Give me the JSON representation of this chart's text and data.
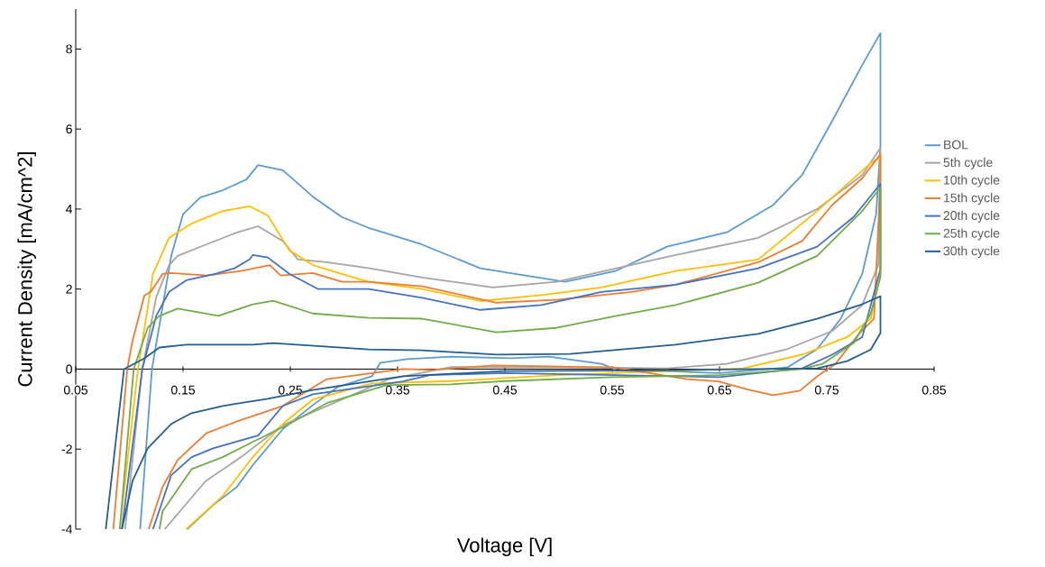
{
  "chart_data": {
    "type": "line",
    "xlabel": "Voltage [V]",
    "ylabel": "Current Density [mA/cm^2]",
    "xlim": [
      0.05,
      0.85
    ],
    "ylim": [
      -4,
      9
    ],
    "xticks": [
      0.05,
      0.15,
      0.25,
      0.35,
      0.45,
      0.55,
      0.65,
      0.75,
      0.85
    ],
    "yticks": [
      -4,
      -2,
      0,
      2,
      4,
      6,
      8
    ],
    "grid": false,
    "legend": "right",
    "marker": "none",
    "line_style": "solid",
    "series": [
      {
        "name": "BOL",
        "color": "#5b9bd5",
        "x": [
          0.11,
          0.121,
          0.139,
          0.15,
          0.166,
          0.187,
          0.209,
          0.22,
          0.243,
          0.271,
          0.298,
          0.323,
          0.372,
          0.427,
          0.469,
          0.506,
          0.553,
          0.601,
          0.657,
          0.7,
          0.727,
          0.755,
          0.783,
          0.8,
          0.8,
          0.796,
          0.783,
          0.763,
          0.741,
          0.713,
          0.65,
          0.6,
          0.554,
          0.54,
          0.491,
          0.456,
          0.4,
          0.359,
          0.334,
          0.326,
          0.294,
          0.271,
          0.243,
          0.215,
          0.2,
          0.178,
          0.154
        ],
        "values": [
          -4,
          0,
          2.83,
          3.87,
          4.29,
          4.47,
          4.74,
          5.1,
          4.97,
          4.31,
          3.8,
          3.53,
          3.12,
          2.52,
          2.34,
          2.18,
          2.45,
          3.06,
          3.42,
          4.1,
          4.85,
          6.2,
          7.6,
          8.4,
          5.6,
          3.87,
          2.38,
          1.26,
          0.5,
          0.04,
          -0.1,
          -0.05,
          -0.02,
          0.13,
          0.31,
          0.27,
          0.31,
          0.25,
          0.16,
          -0.18,
          -0.45,
          -0.9,
          -1.5,
          -2.4,
          -2.95,
          -3.4,
          -4
        ]
      },
      {
        "name": "5th cycle",
        "color": "#a5a5a5",
        "x": [
          0.096,
          0.112,
          0.125,
          0.137,
          0.145,
          0.172,
          0.201,
          0.22,
          0.243,
          0.257,
          0.284,
          0.324,
          0.373,
          0.439,
          0.498,
          0.554,
          0.609,
          0.686,
          0.741,
          0.783,
          0.8,
          0.798,
          0.783,
          0.755,
          0.713,
          0.657,
          0.601,
          0.5,
          0.4,
          0.342,
          0.243,
          0.204,
          0.171,
          0.133
        ],
        "values": [
          -4,
          0,
          1.8,
          2.6,
          2.83,
          3.12,
          3.42,
          3.57,
          3.2,
          2.74,
          2.67,
          2.52,
          2.29,
          2.04,
          2.18,
          2.52,
          2.85,
          3.28,
          4.0,
          4.85,
          5.53,
          2.6,
          1.6,
          0.95,
          0.5,
          0.13,
          0.02,
          0.05,
          0.05,
          -0.25,
          -1.4,
          -2.2,
          -2.8,
          -4
        ]
      },
      {
        "name": "10th cycle",
        "color": "#ffc000",
        "x": [
          0.091,
          0.108,
          0.122,
          0.137,
          0.158,
          0.187,
          0.212,
          0.229,
          0.249,
          0.271,
          0.298,
          0.323,
          0.373,
          0.427,
          0.484,
          0.54,
          0.609,
          0.686,
          0.741,
          0.791,
          0.8,
          0.8,
          0.791,
          0.769,
          0.727,
          0.672,
          0.6,
          0.5,
          0.4,
          0.326,
          0.271,
          0.243,
          0.215,
          0.187,
          0.153
        ],
        "values": [
          -4,
          0,
          2.38,
          3.28,
          3.64,
          3.95,
          4.07,
          3.84,
          2.97,
          2.6,
          2.38,
          2.18,
          2.0,
          1.7,
          1.85,
          2.04,
          2.45,
          2.74,
          3.95,
          5.15,
          5.3,
          2.38,
          1.26,
          0.8,
          0.36,
          0.02,
          -0.05,
          -0.15,
          -0.3,
          -0.36,
          -0.76,
          -1.37,
          -2.2,
          -3.17,
          -4
        ]
      },
      {
        "name": "15th cycle",
        "color": "#ed7d31",
        "x": [
          0.085,
          0.098,
          0.103,
          0.114,
          0.12,
          0.131,
          0.139,
          0.172,
          0.204,
          0.231,
          0.241,
          0.271,
          0.298,
          0.323,
          0.373,
          0.442,
          0.498,
          0.568,
          0.609,
          0.686,
          0.727,
          0.755,
          0.783,
          0.8,
          0.8,
          0.794,
          0.78,
          0.758,
          0.741,
          0.725,
          0.7,
          0.678,
          0.649,
          0.62,
          0.578,
          0.551,
          0.439,
          0.383,
          0.355,
          0.284,
          0.243,
          0.201,
          0.172,
          0.145,
          0.131,
          0.118
        ],
        "values": [
          -4,
          0,
          0.72,
          1.84,
          1.93,
          2.38,
          2.4,
          2.34,
          2.45,
          2.6,
          2.34,
          2.4,
          2.18,
          2.18,
          2.07,
          1.66,
          1.73,
          1.93,
          2.11,
          2.67,
          3.2,
          4.1,
          4.77,
          5.37,
          4.75,
          1.26,
          0.88,
          0.13,
          -0.18,
          -0.54,
          -0.65,
          -0.52,
          -0.31,
          -0.25,
          -0.07,
          0.04,
          0.09,
          -0.02,
          0.0,
          -0.25,
          -0.92,
          -1.3,
          -1.6,
          -2.27,
          -2.94,
          -4
        ]
      },
      {
        "name": "20th cycle",
        "color": "#4472c4",
        "x": [
          0.093,
          0.112,
          0.125,
          0.137,
          0.153,
          0.18,
          0.198,
          0.212,
          0.215,
          0.229,
          0.249,
          0.276,
          0.323,
          0.373,
          0.427,
          0.484,
          0.54,
          0.609,
          0.686,
          0.741,
          0.775,
          0.8,
          0.8,
          0.783,
          0.755,
          0.727,
          0.65,
          0.55,
          0.45,
          0.38,
          0.355,
          0.271,
          0.243,
          0.22,
          0.178,
          0.158,
          0.139,
          0.122
        ],
        "values": [
          -4,
          0,
          1.33,
          1.93,
          2.22,
          2.38,
          2.52,
          2.74,
          2.85,
          2.79,
          2.38,
          2.0,
          2.0,
          1.78,
          1.48,
          1.6,
          1.93,
          2.11,
          2.52,
          3.06,
          3.8,
          4.63,
          2.5,
          0.8,
          0.36,
          0.02,
          -0.2,
          -0.15,
          -0.1,
          -0.15,
          -0.31,
          -0.63,
          -0.92,
          -1.66,
          -1.98,
          -2.2,
          -2.65,
          -4
        ]
      },
      {
        "name": "25th cycle",
        "color": "#70ad47",
        "x": [
          0.091,
          0.104,
          0.117,
          0.128,
          0.145,
          0.183,
          0.215,
          0.234,
          0.271,
          0.323,
          0.373,
          0.442,
          0.498,
          0.554,
          0.609,
          0.686,
          0.741,
          0.783,
          0.8,
          0.8,
          0.791,
          0.775,
          0.746,
          0.727,
          0.65,
          0.55,
          0.45,
          0.4,
          0.34,
          0.284,
          0.249,
          0.215,
          0.187,
          0.158,
          0.131,
          0.128
        ],
        "values": [
          -4,
          0,
          1.03,
          1.33,
          1.51,
          1.33,
          1.62,
          1.71,
          1.39,
          1.28,
          1.26,
          0.92,
          1.03,
          1.33,
          1.6,
          2.16,
          2.83,
          3.95,
          4.54,
          2.3,
          1.39,
          0.65,
          0.13,
          0.0,
          -0.15,
          -0.2,
          -0.3,
          -0.38,
          -0.4,
          -0.85,
          -1.37,
          -1.82,
          -2.2,
          -2.5,
          -3.55,
          -4
        ]
      },
      {
        "name": "30th cycle",
        "color": "#255e91",
        "x": [
          0.078,
          0.095,
          0.114,
          0.128,
          0.153,
          0.215,
          0.234,
          0.323,
          0.373,
          0.442,
          0.511,
          0.609,
          0.686,
          0.741,
          0.783,
          0.8,
          0.8,
          0.791,
          0.769,
          0.741,
          0.6,
          0.45,
          0.355,
          0.271,
          0.229,
          0.187,
          0.158,
          0.139,
          0.117,
          0.103,
          0.093
        ],
        "values": [
          -4,
          0,
          0.27,
          0.54,
          0.61,
          0.61,
          0.65,
          0.49,
          0.47,
          0.36,
          0.38,
          0.61,
          0.88,
          1.26,
          1.62,
          1.82,
          0.9,
          0.49,
          0.2,
          0.02,
          -0.03,
          -0.05,
          -0.18,
          -0.52,
          -0.74,
          -0.92,
          -1.1,
          -1.37,
          -1.98,
          -2.79,
          -4
        ]
      }
    ]
  }
}
